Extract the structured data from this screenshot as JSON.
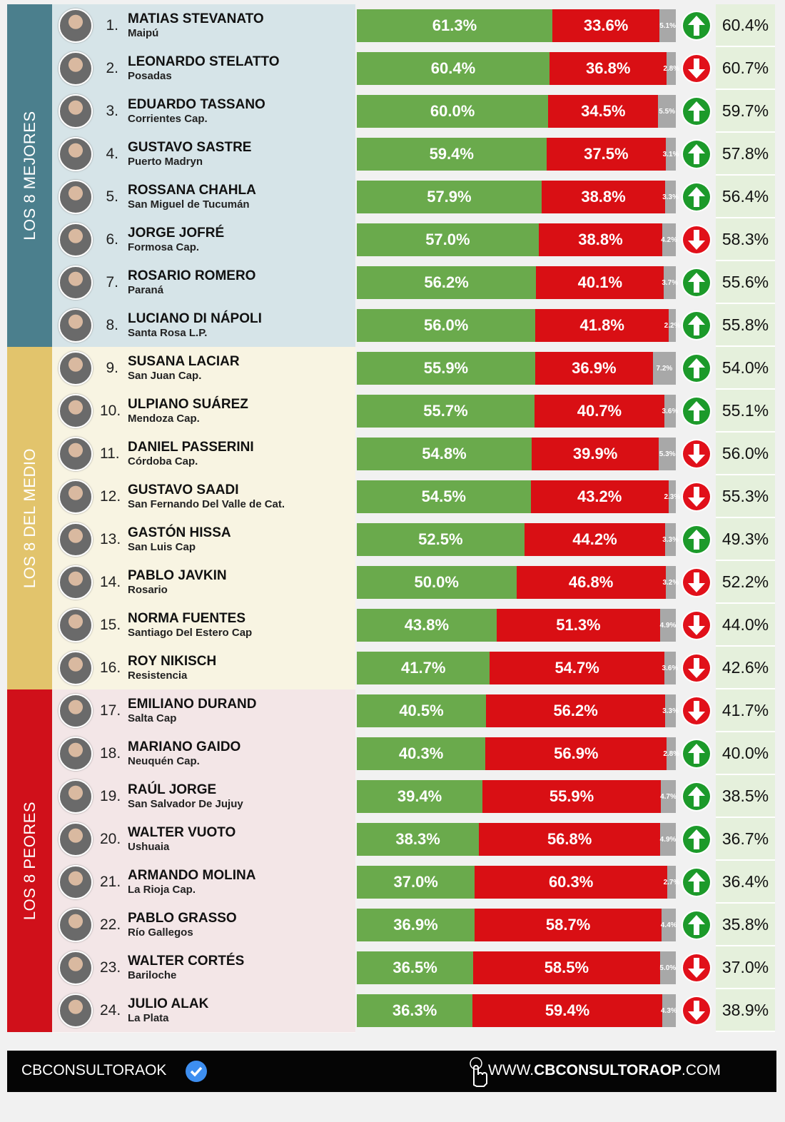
{
  "colors": {
    "approve": "#6aaa4c",
    "disapprove": "#d90f14",
    "undecided": "#a8a8a8",
    "up": "#1c9a2a",
    "down": "#e1101a"
  },
  "groups": [
    {
      "label": "LOS 8 MEJORES",
      "color": "#4b7f8d",
      "background": "#d6e4e8",
      "rows": [
        {
          "rank": "1.",
          "name": "MATIAS STEVANATO",
          "city": "Maipú",
          "values": [
            61.3,
            33.6,
            5.1
          ],
          "value_labels": [
            "61.3%",
            "33.6%",
            "5.1%"
          ],
          "trend": "up",
          "previous": "60.4%"
        },
        {
          "rank": "2.",
          "name": "LEONARDO STELATTO",
          "city": "Posadas",
          "values": [
            60.4,
            36.8,
            2.8
          ],
          "value_labels": [
            "60.4%",
            "36.8%",
            "2.8%"
          ],
          "trend": "down",
          "previous": "60.7%"
        },
        {
          "rank": "3.",
          "name": "EDUARDO TASSANO",
          "city": "Corrientes Cap.",
          "values": [
            60.0,
            34.5,
            5.5
          ],
          "value_labels": [
            "60.0%",
            "34.5%",
            "5.5%"
          ],
          "trend": "up",
          "previous": "59.7%"
        },
        {
          "rank": "4.",
          "name": "GUSTAVO SASTRE",
          "city": "Puerto Madryn",
          "values": [
            59.4,
            37.5,
            3.1
          ],
          "value_labels": [
            "59.4%",
            "37.5%",
            "3.1%"
          ],
          "trend": "up",
          "previous": "57.8%"
        },
        {
          "rank": "5.",
          "name": "ROSSANA CHAHLA",
          "city": "San Miguel de Tucumán",
          "values": [
            57.9,
            38.8,
            3.3
          ],
          "value_labels": [
            "57.9%",
            "38.8%",
            "3.3%"
          ],
          "trend": "up",
          "previous": "56.4%"
        },
        {
          "rank": "6.",
          "name": "JORGE JOFRÉ",
          "city": "Formosa Cap.",
          "values": [
            57.0,
            38.8,
            4.2
          ],
          "value_labels": [
            "57.0%",
            "38.8%",
            "4.2%"
          ],
          "trend": "down",
          "previous": "58.3%"
        },
        {
          "rank": "7.",
          "name": "ROSARIO ROMERO",
          "city": "Paraná",
          "values": [
            56.2,
            40.1,
            3.7
          ],
          "value_labels": [
            "56.2%",
            "40.1%",
            "3.7%"
          ],
          "trend": "up",
          "previous": "55.6%"
        },
        {
          "rank": "8.",
          "name": "LUCIANO DI NÁPOLI",
          "city": "Santa Rosa L.P.",
          "values": [
            56.0,
            41.8,
            2.2
          ],
          "value_labels": [
            "56.0%",
            "41.8%",
            "2.2%"
          ],
          "trend": "up",
          "previous": "55.8%"
        }
      ]
    },
    {
      "label": "LOS 8 DEL MEDIO",
      "color": "#e2c46c",
      "background": "#f8f4e2",
      "rows": [
        {
          "rank": "9.",
          "name": "SUSANA LACIAR",
          "city": "San Juan Cap.",
          "values": [
            55.9,
            36.9,
            7.2
          ],
          "value_labels": [
            "55.9%",
            "36.9%",
            "7.2%"
          ],
          "trend": "up",
          "previous": "54.0%"
        },
        {
          "rank": "10.",
          "name": "ULPIANO SUÁREZ",
          "city": "Mendoza Cap.",
          "values": [
            55.7,
            40.7,
            3.6
          ],
          "value_labels": [
            "55.7%",
            "40.7%",
            "3.6%"
          ],
          "trend": "up",
          "previous": "55.1%"
        },
        {
          "rank": "11.",
          "name": "DANIEL PASSERINI",
          "city": "Córdoba Cap.",
          "values": [
            54.8,
            39.9,
            5.3
          ],
          "value_labels": [
            "54.8%",
            "39.9%",
            "5.3%"
          ],
          "trend": "down",
          "previous": "56.0%"
        },
        {
          "rank": "12.",
          "name": "GUSTAVO SAADI",
          "city": "San Fernando Del Valle de Cat.",
          "values": [
            54.5,
            43.2,
            2.3
          ],
          "value_labels": [
            "54.5%",
            "43.2%",
            "2.3%"
          ],
          "trend": "down",
          "previous": "55.3%"
        },
        {
          "rank": "13.",
          "name": "GASTÓN HISSA",
          "city": "San Luis Cap",
          "values": [
            52.5,
            44.2,
            3.3
          ],
          "value_labels": [
            "52.5%",
            "44.2%",
            "3.3%"
          ],
          "trend": "up",
          "previous": "49.3%"
        },
        {
          "rank": "14.",
          "name": "PABLO JAVKIN",
          "city": "Rosario",
          "values": [
            50.0,
            46.8,
            3.2
          ],
          "value_labels": [
            "50.0%",
            "46.8%",
            "3.2%"
          ],
          "trend": "down",
          "previous": "52.2%"
        },
        {
          "rank": "15.",
          "name": "NORMA FUENTES",
          "city": "Santiago Del Estero Cap",
          "values": [
            43.8,
            51.3,
            4.9
          ],
          "value_labels": [
            "43.8%",
            "51.3%",
            "4.9%"
          ],
          "trend": "down",
          "previous": "44.0%"
        },
        {
          "rank": "16.",
          "name": "ROY NIKISCH",
          "city": "Resistencia",
          "values": [
            41.7,
            54.7,
            3.6
          ],
          "value_labels": [
            "41.7%",
            "54.7%",
            "3.6%"
          ],
          "trend": "down",
          "previous": "42.6%"
        }
      ]
    },
    {
      "label": "LOS 8 PEORES",
      "color": "#d0101a",
      "background": "#f3e6e7",
      "rows": [
        {
          "rank": "17.",
          "name": "EMILIANO DURAND",
          "city": "Salta Cap",
          "values": [
            40.5,
            56.2,
            3.3
          ],
          "value_labels": [
            "40.5%",
            "56.2%",
            "3.3%"
          ],
          "trend": "down",
          "previous": "41.7%"
        },
        {
          "rank": "18.",
          "name": "MARIANO GAIDO",
          "city": "Neuquén Cap.",
          "values": [
            40.3,
            56.9,
            2.8
          ],
          "value_labels": [
            "40.3%",
            "56.9%",
            "2.8%"
          ],
          "trend": "up",
          "previous": "40.0%"
        },
        {
          "rank": "19.",
          "name": "RAÚL JORGE",
          "city": "San Salvador De Jujuy",
          "values": [
            39.4,
            55.9,
            4.7
          ],
          "value_labels": [
            "39.4%",
            "55.9%",
            "4.7%"
          ],
          "trend": "up",
          "previous": "38.5%"
        },
        {
          "rank": "20.",
          "name": "WALTER VUOTO",
          "city": "Ushuaia",
          "values": [
            38.3,
            56.8,
            4.9
          ],
          "value_labels": [
            "38.3%",
            "56.8%",
            "4.9%"
          ],
          "trend": "up",
          "previous": "36.7%"
        },
        {
          "rank": "21.",
          "name": "ARMANDO MOLINA",
          "city": "La Rioja Cap.",
          "values": [
            37.0,
            60.3,
            2.7
          ],
          "value_labels": [
            "37.0%",
            "60.3%",
            "2.7%"
          ],
          "trend": "up",
          "previous": "36.4%"
        },
        {
          "rank": "22.",
          "name": "PABLO GRASSO",
          "city": "Río Gallegos",
          "values": [
            36.9,
            58.7,
            4.4
          ],
          "value_labels": [
            "36.9%",
            "58.7%",
            "4.4%"
          ],
          "trend": "up",
          "previous": "35.8%"
        },
        {
          "rank": "23.",
          "name": "WALTER CORTÉS",
          "city": "Bariloche",
          "values": [
            36.5,
            58.5,
            5.0
          ],
          "value_labels": [
            "36.5%",
            "58.5%",
            "5.0%"
          ],
          "trend": "down",
          "previous": "37.0%"
        },
        {
          "rank": "24.",
          "name": "JULIO ALAK",
          "city": "La Plata",
          "values": [
            36.3,
            59.4,
            4.3
          ],
          "value_labels": [
            "36.3%",
            "59.4%",
            "4.3%"
          ],
          "trend": "down",
          "previous": "38.9%"
        }
      ]
    }
  ],
  "footer": {
    "account": "CBCONSULTORAOK",
    "website": [
      "WWW.",
      "CBCONSULTORAOP",
      ".COM"
    ]
  }
}
